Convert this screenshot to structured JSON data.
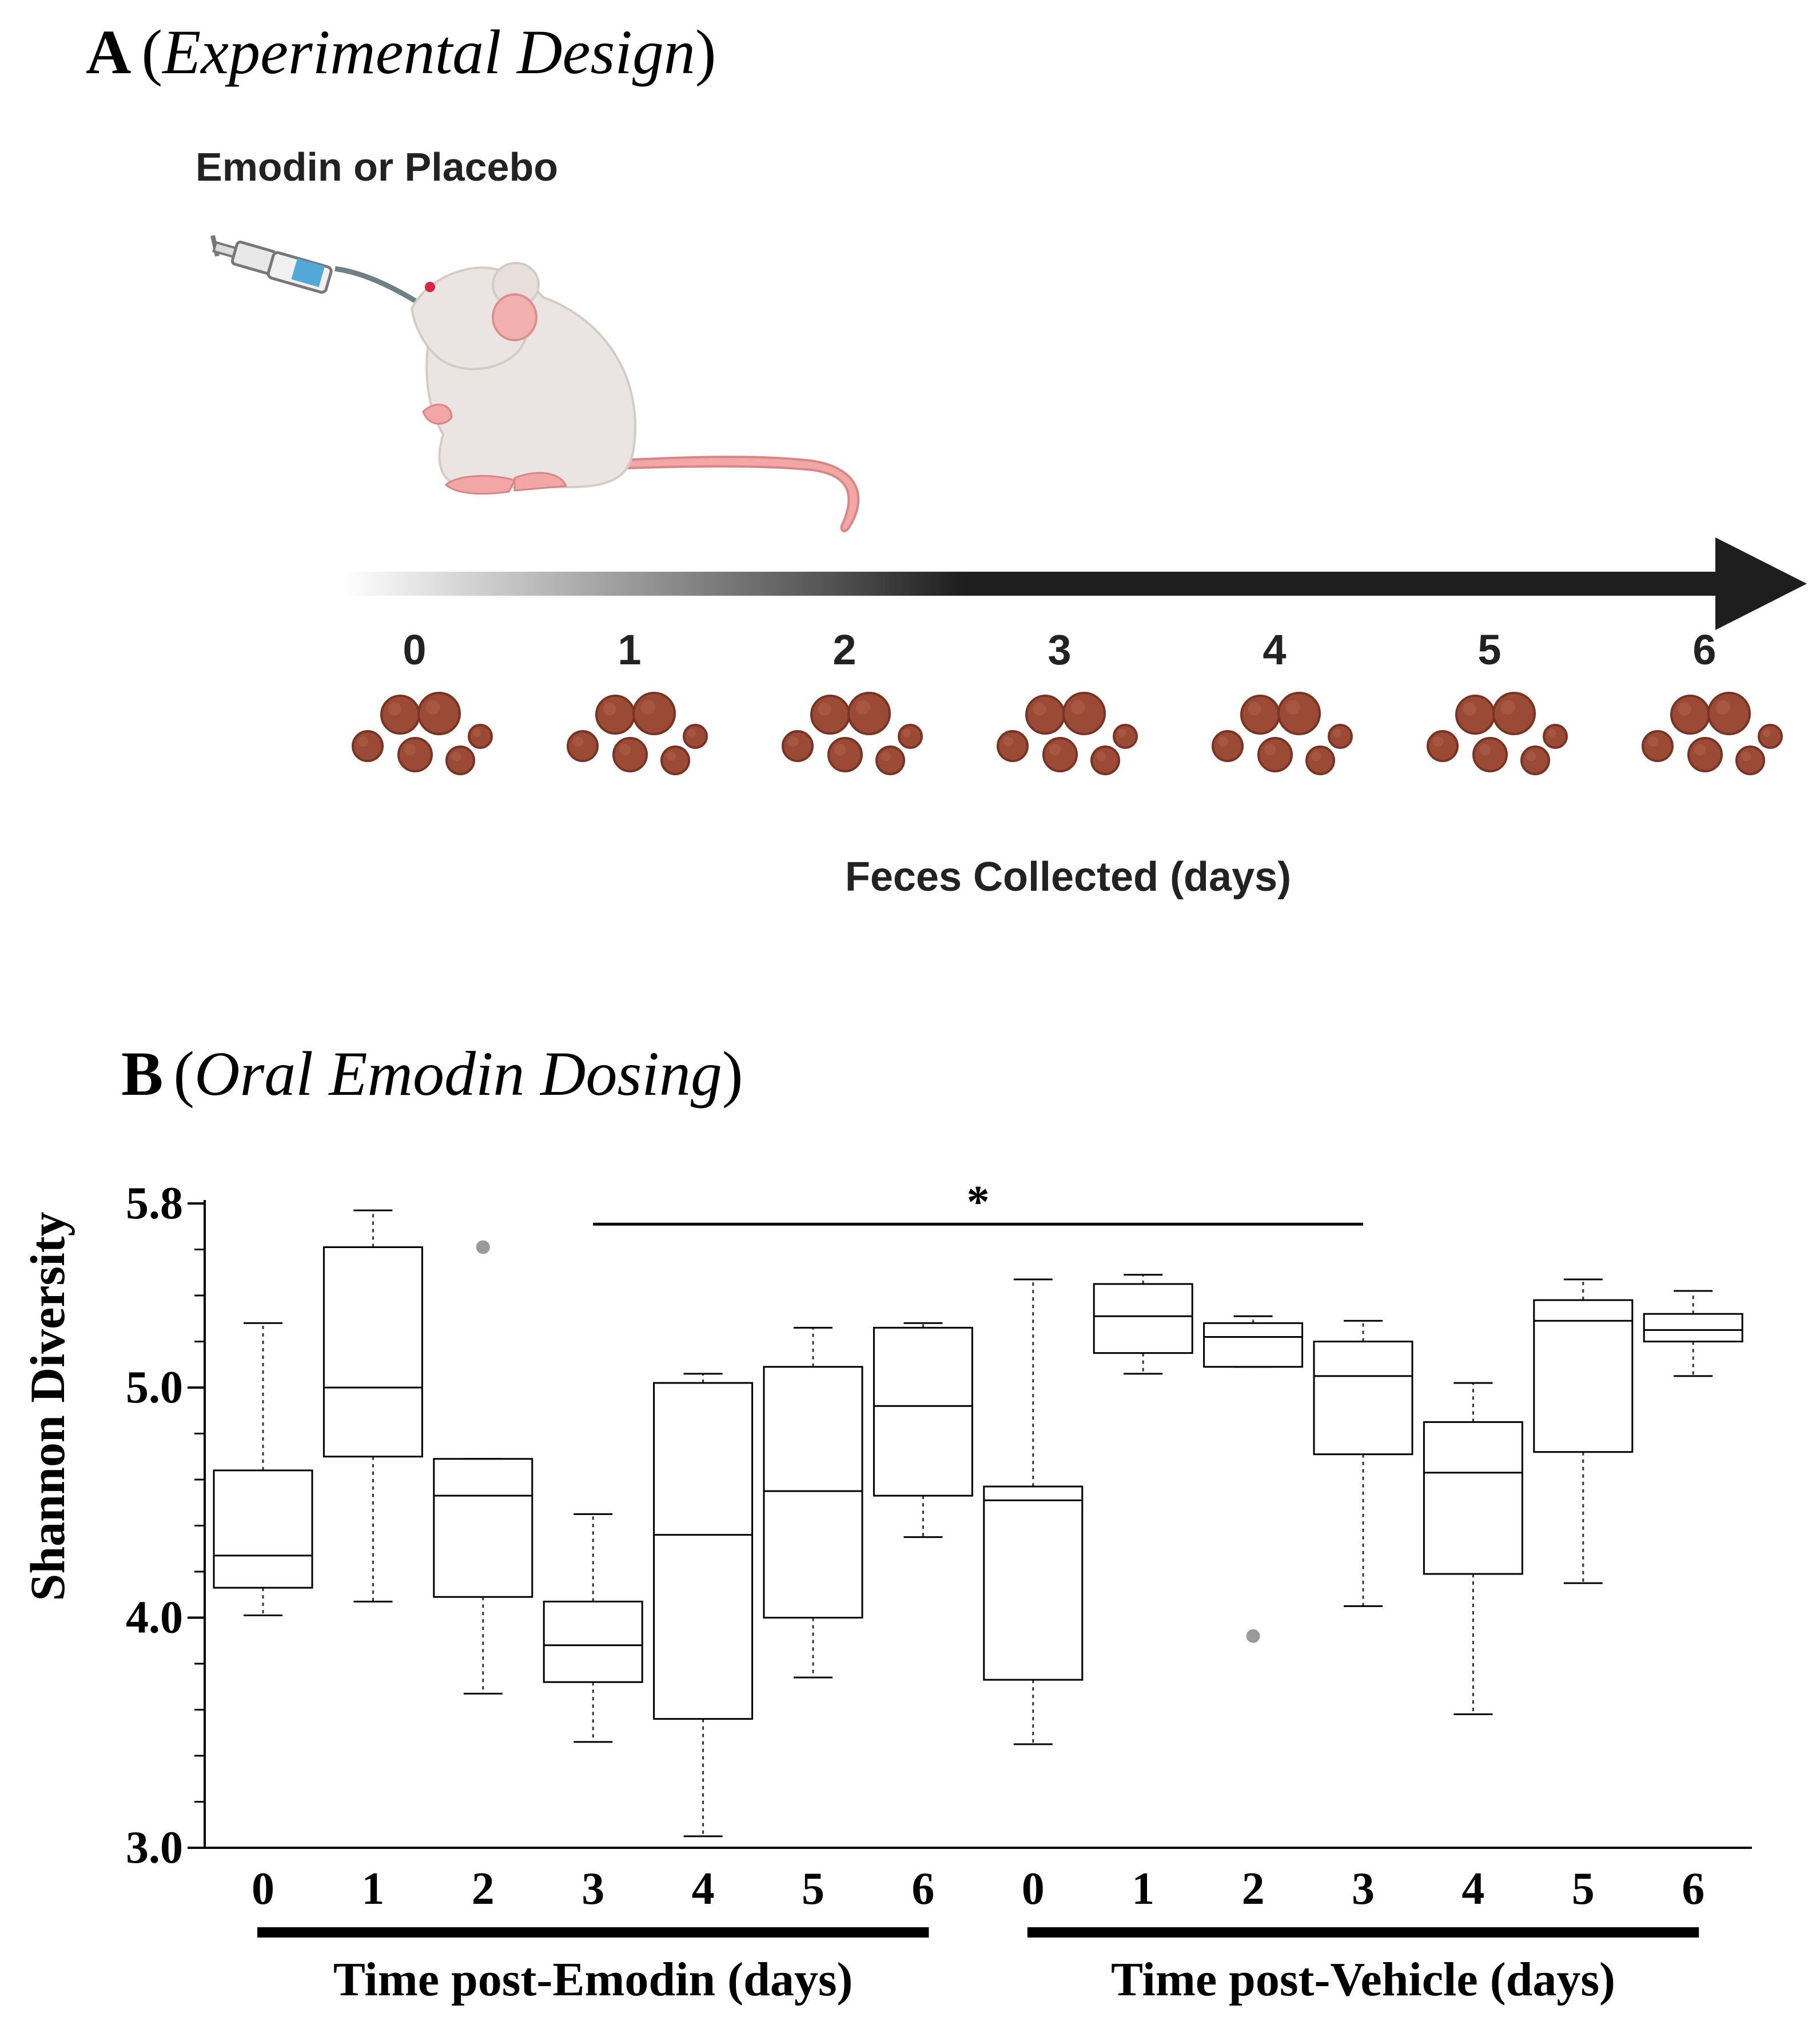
{
  "panelA": {
    "letter": "A",
    "title": "Experimental Design",
    "treatment_label": "Emodin or Placebo",
    "days": [
      "0",
      "1",
      "2",
      "3",
      "4",
      "5",
      "6"
    ],
    "feces_label": "Feces Collected (days)",
    "icons": [
      "syringe-icon",
      "mouse-icon",
      "arrow-icon",
      "feces-icon"
    ]
  },
  "panelB": {
    "letter": "B",
    "title": "Oral Emodin Dosing"
  },
  "chart_data": {
    "type": "box",
    "ylabel": "Shannon Diversity",
    "ylim": [
      3.0,
      5.8
    ],
    "yticks_labeled": [
      "3.0",
      "4.0",
      "5.0",
      "5.8"
    ],
    "yticks_minor": [
      3.2,
      3.4,
      3.6,
      3.8,
      4.2,
      4.4,
      4.6,
      4.8,
      5.2,
      5.4,
      5.6
    ],
    "groups": [
      {
        "label": "Time post-Emodin (days)",
        "boxes": [
          {
            "day": "0",
            "min": 4.01,
            "q1": 4.13,
            "median": 4.27,
            "q3": 4.64,
            "max": 5.28,
            "outliers": []
          },
          {
            "day": "1",
            "min": 4.07,
            "q1": 4.7,
            "median": 5.0,
            "q3": 5.61,
            "max": 5.77,
            "outliers": []
          },
          {
            "day": "2",
            "min": 3.67,
            "q1": 4.09,
            "median": 4.53,
            "q3": 4.69,
            "max": 4.69,
            "outliers": [
              5.61
            ]
          },
          {
            "day": "3",
            "min": 3.46,
            "q1": 3.72,
            "median": 3.88,
            "q3": 4.07,
            "max": 4.45,
            "outliers": []
          },
          {
            "day": "4",
            "min": 3.05,
            "q1": 3.56,
            "median": 4.36,
            "q3": 5.02,
            "max": 5.06,
            "outliers": []
          },
          {
            "day": "5",
            "min": 3.74,
            "q1": 4.0,
            "median": 4.55,
            "q3": 5.09,
            "max": 5.26,
            "outliers": []
          },
          {
            "day": "6",
            "min": 4.35,
            "q1": 4.53,
            "median": 4.92,
            "q3": 5.26,
            "max": 5.28,
            "outliers": []
          }
        ]
      },
      {
        "label": "Time post-Vehicle (days)",
        "boxes": [
          {
            "day": "0",
            "min": 3.45,
            "q1": 3.73,
            "median": 4.51,
            "q3": 4.57,
            "max": 5.47,
            "outliers": []
          },
          {
            "day": "1",
            "min": 5.06,
            "q1": 5.15,
            "median": 5.31,
            "q3": 5.45,
            "max": 5.49,
            "outliers": []
          },
          {
            "day": "2",
            "min": 5.09,
            "q1": 5.09,
            "median": 5.22,
            "q3": 5.28,
            "max": 5.31,
            "outliers": [
              3.92
            ]
          },
          {
            "day": "3",
            "min": 4.05,
            "q1": 4.71,
            "median": 5.05,
            "q3": 5.2,
            "max": 5.29,
            "outliers": []
          },
          {
            "day": "4",
            "min": 3.58,
            "q1": 4.19,
            "median": 4.63,
            "q3": 4.85,
            "max": 5.02,
            "outliers": []
          },
          {
            "day": "5",
            "min": 4.15,
            "q1": 4.72,
            "median": 5.29,
            "q3": 5.38,
            "max": 5.47,
            "outliers": []
          },
          {
            "day": "6",
            "min": 5.05,
            "q1": 5.2,
            "median": 5.25,
            "q3": 5.32,
            "max": 5.42,
            "outliers": []
          }
        ]
      }
    ],
    "significance": {
      "label": "*",
      "from_box": 3,
      "to_box": 10,
      "y": 5.71
    }
  }
}
